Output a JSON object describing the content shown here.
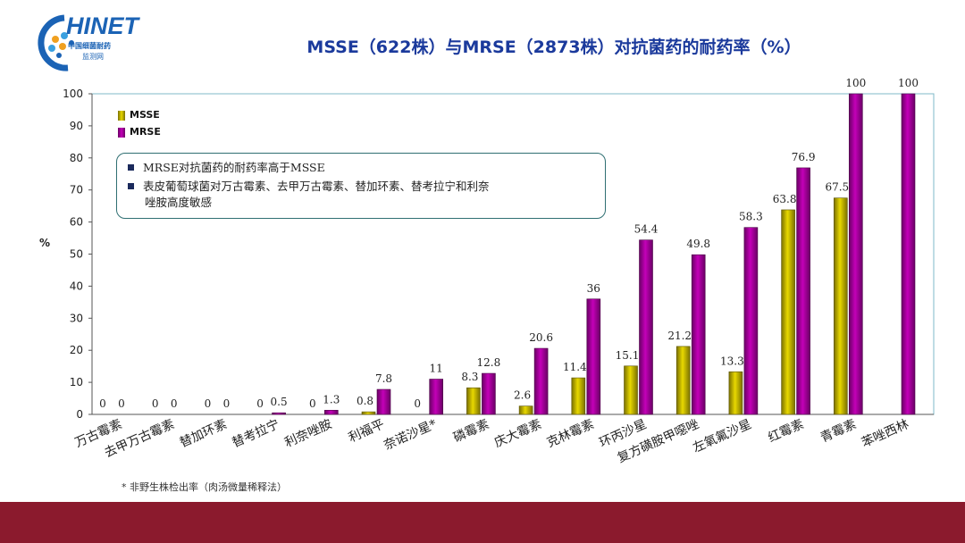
{
  "logo": {
    "main": "HINET",
    "line1": "中国细菌耐药",
    "line2": "监测网"
  },
  "title": "MSSE（622株）与MRSE（2873株）对抗菌药的耐药率（%）",
  "footnote": "* 非野生株检出率（肉汤微量稀释法）",
  "note_box": {
    "bullet1": "MRSE对抗菌药的耐药率高于MSSE",
    "bullet2_line1": "表皮葡萄球菌对万古霉素、去甲万古霉素、替加环素、替考拉宁和利奈",
    "bullet2_line2": "唑胺高度敏感"
  },
  "colors": {
    "msse": "#e8d800",
    "msse_dark": "#7a7000",
    "mrse": "#c400b8",
    "mrse_dark": "#6a0065",
    "footer": "#8b1a2d",
    "title": "#1b3a9c",
    "plot_border": "#7fb8c8"
  },
  "chart_data": {
    "type": "bar",
    "title": "MSSE（622株）与MRSE（2873株）对抗菌药的耐药率（%）",
    "xlabel": "",
    "ylabel": "%",
    "ylim": [
      0,
      100
    ],
    "yticks": [
      "0",
      "10",
      "20",
      "30",
      "40",
      "50",
      "60",
      "70",
      "80",
      "90",
      "100"
    ],
    "legend_position": "top-left",
    "grid": false,
    "categories": [
      "万古霉素",
      "去甲万古霉素",
      "替加环素",
      "替考拉宁",
      "利奈唑胺",
      "利福平",
      "奈诺沙星*",
      "磷霉素",
      "庆大霉素",
      "克林霉素",
      "环丙沙星",
      "复方磺胺甲噁唑",
      "左氧氟沙星",
      "红霉素",
      "青霉素",
      "苯唑西林"
    ],
    "series": [
      {
        "name": "MSSE",
        "values": [
          0,
          0,
          0,
          0,
          0,
          0.8,
          0,
          8.3,
          2.6,
          11.4,
          15.1,
          21.2,
          13.3,
          63.8,
          67.5,
          null
        ],
        "labels": [
          "0",
          "0",
          "0",
          "0",
          "0",
          "0.8",
          "0",
          "8.3",
          "2.6",
          "11.4",
          "15.1",
          "21.2",
          "13.3",
          "63.8",
          "67.5",
          ""
        ]
      },
      {
        "name": "MRSE",
        "values": [
          0,
          0,
          0,
          0.5,
          1.3,
          7.8,
          11,
          12.8,
          20.6,
          36,
          54.4,
          49.8,
          58.3,
          76.9,
          100,
          100
        ],
        "labels": [
          "0",
          "0",
          "0",
          "0.5",
          "1.3",
          "7.8",
          "11",
          "12.8",
          "20.6",
          "36",
          "54.4",
          "49.8",
          "58.3",
          "76.9",
          "100",
          "100"
        ]
      }
    ],
    "stray_label": "0"
  }
}
